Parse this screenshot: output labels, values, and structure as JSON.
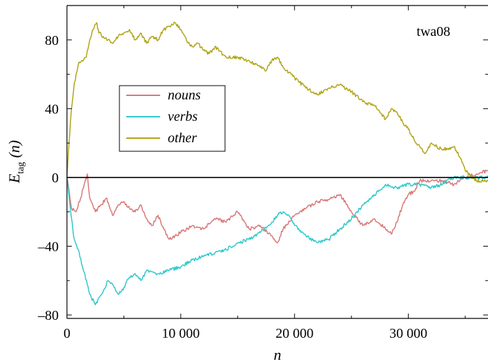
{
  "chart_data": {
    "type": "line",
    "annotation": "twa08",
    "xlabel": "n",
    "ylabel": {
      "main": "E",
      "sub": "tag",
      "arg": "(n)"
    },
    "xlim": [
      0,
      37000
    ],
    "ylim": [
      -82,
      100
    ],
    "x_ticks": [
      0,
      10000,
      20000,
      30000
    ],
    "x_tick_labels": [
      "0",
      "10 000",
      "20 000",
      "30 000"
    ],
    "y_ticks": [
      -80,
      -40,
      0,
      40,
      80
    ],
    "y_tick_labels": [
      "–80",
      "–40",
      "0",
      "40",
      "80"
    ],
    "zero_line": true,
    "grid": false,
    "legend_position": "upper-left-center",
    "series": [
      {
        "name": "nouns",
        "color": "#d87878",
        "x": [
          0,
          400,
          800,
          1200,
          1600,
          1800,
          2000,
          2500,
          3000,
          3500,
          4000,
          4500,
          5000,
          5500,
          6000,
          6500,
          7000,
          7500,
          8000,
          8500,
          9000,
          10000,
          11000,
          12000,
          13000,
          14000,
          15000,
          16000,
          17000,
          18000,
          18500,
          19000,
          20000,
          21000,
          22000,
          23000,
          24000,
          25000,
          26000,
          27000,
          28000,
          28500,
          29000,
          29500,
          30000,
          30500,
          31000,
          32000,
          33000,
          34000,
          35000,
          36000,
          37000
        ],
        "y": [
          0,
          -18,
          -20,
          -12,
          -2,
          2,
          -12,
          -20,
          -16,
          -12,
          -22,
          -16,
          -14,
          -18,
          -20,
          -16,
          -24,
          -28,
          -22,
          -30,
          -36,
          -32,
          -28,
          -30,
          -24,
          -26,
          -20,
          -30,
          -28,
          -34,
          -38,
          -30,
          -22,
          -18,
          -14,
          -13,
          -10,
          -20,
          -28,
          -24,
          -30,
          -33,
          -26,
          -16,
          -10,
          -8,
          -2,
          -2,
          -2,
          -4,
          0,
          2,
          4
        ]
      },
      {
        "name": "verbs",
        "color": "#2ec8cc",
        "x": [
          0,
          300,
          600,
          1000,
          1500,
          2000,
          2500,
          2800,
          3200,
          3600,
          4000,
          4500,
          5000,
          5500,
          6000,
          6500,
          7000,
          8000,
          9000,
          10000,
          11000,
          12000,
          13000,
          14000,
          15000,
          16000,
          17000,
          18000,
          18500,
          19000,
          19500,
          20000,
          21000,
          22000,
          23000,
          24000,
          25000,
          26000,
          27000,
          28000,
          29000,
          30000,
          31000,
          32000,
          33000,
          34000,
          35000,
          36000,
          37000
        ],
        "y": [
          0,
          -18,
          -35,
          -42,
          -55,
          -68,
          -74,
          -70,
          -66,
          -60,
          -62,
          -68,
          -64,
          -58,
          -56,
          -60,
          -54,
          -56,
          -54,
          -52,
          -48,
          -46,
          -44,
          -42,
          -38,
          -36,
          -32,
          -26,
          -22,
          -20,
          -22,
          -28,
          -34,
          -38,
          -36,
          -30,
          -24,
          -16,
          -10,
          -4,
          -6,
          -4,
          -4,
          -6,
          -4,
          0,
          0,
          0,
          0
        ]
      },
      {
        "name": "other",
        "color": "#b0a418",
        "x": [
          0,
          200,
          400,
          600,
          800,
          1000,
          1300,
          1700,
          2000,
          2300,
          2600,
          2800,
          3200,
          3600,
          4000,
          4500,
          5000,
          5500,
          6000,
          6500,
          7000,
          7500,
          8000,
          8500,
          9000,
          9500,
          10000,
          10500,
          11000,
          11500,
          12000,
          12500,
          13000,
          14000,
          15000,
          16000,
          17000,
          17500,
          18000,
          18500,
          19000,
          20000,
          21000,
          22000,
          23000,
          24000,
          25000,
          26000,
          27000,
          28000,
          28500,
          29000,
          29500,
          30000,
          30500,
          31000,
          31500,
          32000,
          33000,
          34000,
          34500,
          35000,
          36000,
          37000
        ],
        "y": [
          0,
          22,
          40,
          52,
          60,
          66,
          68,
          70,
          80,
          86,
          90,
          84,
          82,
          80,
          78,
          82,
          84,
          86,
          80,
          84,
          78,
          82,
          80,
          86,
          88,
          90,
          86,
          80,
          76,
          78,
          74,
          72,
          76,
          70,
          70,
          68,
          64,
          62,
          68,
          70,
          64,
          58,
          52,
          48,
          52,
          54,
          50,
          44,
          42,
          34,
          40,
          38,
          32,
          28,
          22,
          18,
          14,
          20,
          16,
          18,
          12,
          4,
          -2,
          -2
        ]
      }
    ]
  }
}
